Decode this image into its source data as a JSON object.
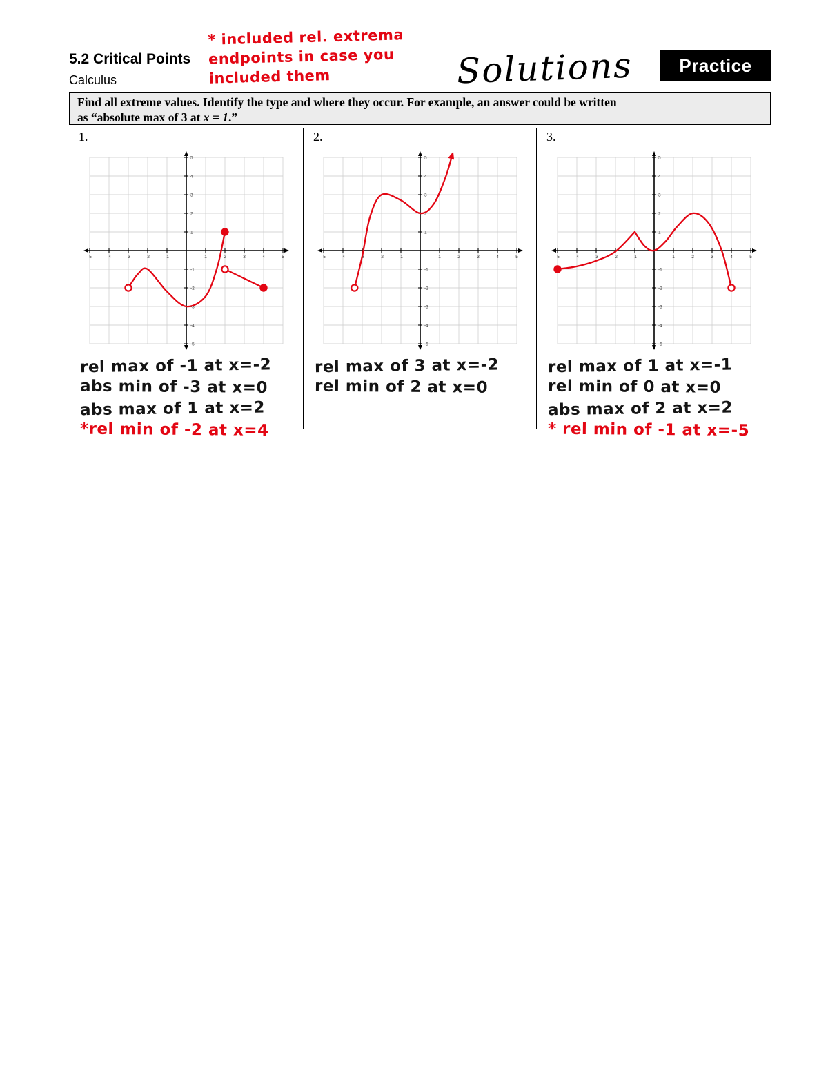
{
  "colors": {
    "ink_red": "#e30613",
    "ink_black": "#141414",
    "grid": "#c9c9c9",
    "axis": "#000000",
    "practice_bg": "#000000",
    "practice_fg": "#ffffff"
  },
  "header": {
    "title": "5.2 Critical Points",
    "subtitle": "Calculus",
    "note_line1": "* included rel. extrema",
    "note_line2": "endpoints in case you",
    "note_line3": "included them",
    "solutions": "Solutions",
    "practice": "Practice"
  },
  "instructions": {
    "line1": "Find all extreme values.  Identify the type and where they occur.  For example, an answer could be written",
    "line2_prefix": "as “absolute max of 3 at ",
    "line2_math": "x = 1",
    "line2_suffix": ".”"
  },
  "problems": [
    {
      "number": "1.",
      "answers": [
        {
          "text": "rel max of -1 at x=-2",
          "color": "black"
        },
        {
          "text": "abs min of -3 at x=0",
          "color": "black"
        },
        {
          "text": "abs max of 1 at x=2",
          "color": "black"
        },
        {
          "text": "*rel min of -2 at x=4",
          "color": "red"
        }
      ]
    },
    {
      "number": "2.",
      "answers": [
        {
          "text": "rel max of 3 at x=-2",
          "color": "black"
        },
        {
          "text": "rel min of 2 at x=0",
          "color": "black"
        }
      ]
    },
    {
      "number": "3.",
      "answers": [
        {
          "text": "rel max of 1 at x=-1",
          "color": "black"
        },
        {
          "text": "rel min of 0 at x=0",
          "color": "black"
        },
        {
          "text": "abs max of 2 at x=2",
          "color": "black"
        },
        {
          "text": "* rel min of -1 at x=-5",
          "color": "red"
        }
      ]
    }
  ],
  "chart_data": [
    {
      "type": "line",
      "title": "",
      "xlabel": "",
      "ylabel": "",
      "xlim": [
        -5,
        5
      ],
      "ylim": [
        -5,
        5
      ],
      "grid": true,
      "segments": [
        {
          "kind": "smooth",
          "points": [
            [
              -3,
              -2
            ],
            [
              -2.5,
              -1.25
            ],
            [
              -2,
              -1
            ],
            [
              -1,
              -2.2
            ],
            [
              0,
              -3
            ],
            [
              1,
              -2.45
            ],
            [
              1.6,
              -0.9
            ],
            [
              2,
              1
            ]
          ]
        },
        {
          "kind": "line",
          "points": [
            [
              2,
              -1
            ],
            [
              4,
              -2
            ]
          ]
        }
      ],
      "markers": [
        {
          "x": -3,
          "y": -2,
          "style": "open"
        },
        {
          "x": 2,
          "y": 1,
          "style": "filled"
        },
        {
          "x": 2,
          "y": -1,
          "style": "open"
        },
        {
          "x": 4,
          "y": -2,
          "style": "filled"
        }
      ],
      "arrow_end": false,
      "extrema": [
        "rel max of -1 at x=-2",
        "abs min of -3 at x=0",
        "abs max of 1 at x=2",
        "rel min of -2 at x=4"
      ]
    },
    {
      "type": "line",
      "title": "",
      "xlabel": "",
      "ylabel": "",
      "xlim": [
        -5,
        5
      ],
      "ylim": [
        -5,
        5
      ],
      "grid": true,
      "segments": [
        {
          "kind": "smooth",
          "points": [
            [
              -3.4,
              -2
            ],
            [
              -3,
              -0.3
            ],
            [
              -2.6,
              1.8
            ],
            [
              -2,
              3
            ],
            [
              -1,
              2.7
            ],
            [
              0,
              2
            ],
            [
              0.7,
              2.5
            ],
            [
              1.3,
              3.9
            ],
            [
              1.65,
              5.1
            ]
          ]
        }
      ],
      "markers": [
        {
          "x": -3.4,
          "y": -2,
          "style": "open"
        }
      ],
      "arrow_end": true,
      "extrema": [
        "rel max of 3 at x=-2",
        "rel min of 2 at x=0"
      ]
    },
    {
      "type": "line",
      "title": "",
      "xlabel": "",
      "ylabel": "",
      "xlim": [
        -5,
        5
      ],
      "ylim": [
        -5,
        5
      ],
      "grid": true,
      "segments": [
        {
          "kind": "smooth",
          "points": [
            [
              -5,
              -1
            ],
            [
              -4,
              -0.85
            ],
            [
              -3,
              -0.55
            ],
            [
              -2,
              -0.05
            ],
            [
              -1,
              1
            ]
          ]
        },
        {
          "kind": "smooth",
          "points": [
            [
              -1,
              1
            ],
            [
              -0.5,
              0.25
            ],
            [
              0,
              0
            ],
            [
              0.6,
              0.5
            ],
            [
              1.2,
              1.3
            ],
            [
              2,
              2
            ],
            [
              2.8,
              1.5
            ],
            [
              3.5,
              0
            ],
            [
              4,
              -2
            ]
          ]
        }
      ],
      "markers": [
        {
          "x": -5,
          "y": -1,
          "style": "filled"
        },
        {
          "x": 4,
          "y": -2,
          "style": "open"
        }
      ],
      "arrow_end": false,
      "extrema": [
        "rel max of 1 at x=-1",
        "rel min of 0 at x=0",
        "abs max of 2 at x=2",
        "rel min of -1 at x=-5"
      ]
    }
  ]
}
